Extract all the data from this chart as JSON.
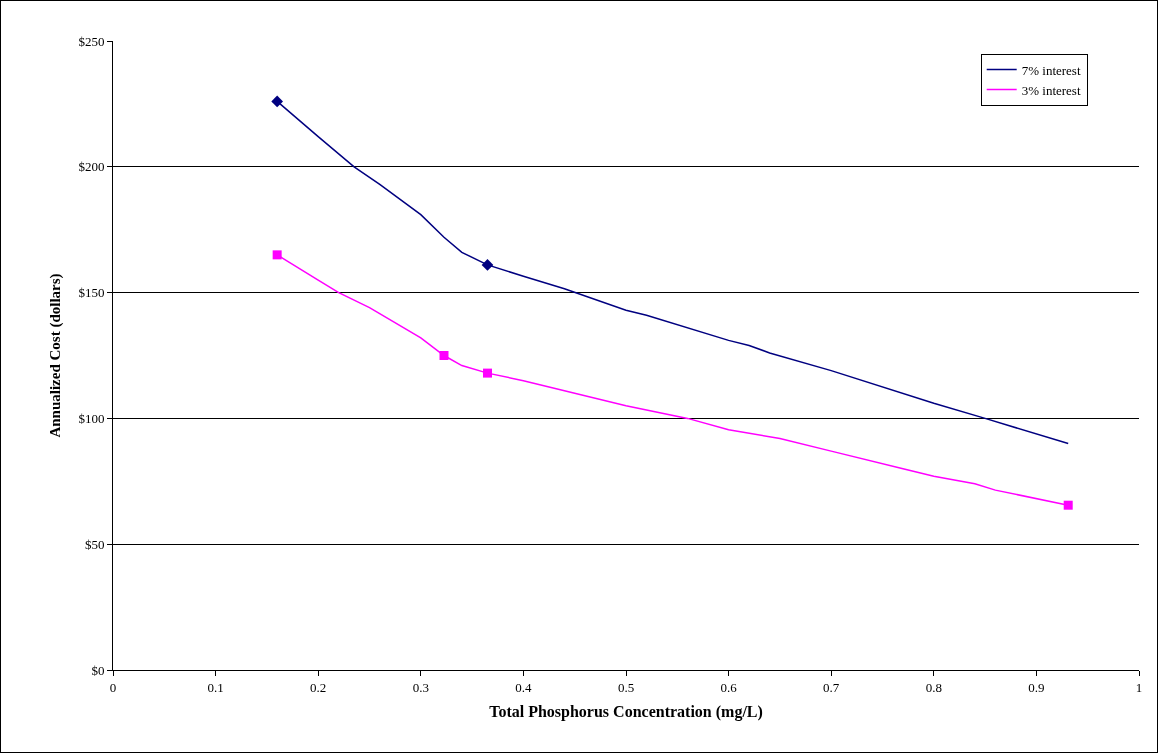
{
  "chart_data": {
    "type": "line",
    "xlabel": "Total Phosphorus Concentration (mg/L)",
    "ylabel": "Annualized Cost (dollars)",
    "series": [
      {
        "name": "7% interest",
        "color": "#000080",
        "marker": "none",
        "x": [
          0.16,
          0.2,
          0.235,
          0.26,
          0.3,
          0.3226,
          0.34,
          0.365,
          0.4,
          0.44,
          0.5,
          0.52,
          0.6,
          0.62,
          0.64,
          0.7,
          0.8,
          0.85,
          0.931
        ],
        "values": [
          226,
          212,
          200,
          193,
          181,
          172,
          166,
          161,
          156.5,
          151.5,
          143,
          141,
          131,
          129,
          126,
          119,
          106,
          100,
          90
        ]
      },
      {
        "name": "3% interest",
        "color": "#ff00ff",
        "marker": "none",
        "x": [
          0.16,
          0.2,
          0.22,
          0.25,
          0.3,
          0.3226,
          0.34,
          0.365,
          0.4,
          0.43,
          0.5,
          0.56,
          0.6,
          0.65,
          0.7,
          0.77,
          0.8,
          0.84,
          0.86,
          0.931
        ],
        "values": [
          165,
          155,
          150,
          144,
          132,
          125,
          121,
          118,
          115,
          112,
          105,
          100,
          95.5,
          92,
          87,
          80,
          77,
          74,
          71.5,
          65.5
        ]
      },
      {
        "type": "scatter",
        "color": "#000080",
        "marker": "diamond",
        "x": [
          0.16,
          0.365
        ],
        "values": [
          226,
          161
        ]
      },
      {
        "type": "scatter",
        "color": "#ff00ff",
        "marker": "square",
        "x": [
          0.16,
          0.3226,
          0.365,
          0.931
        ],
        "values": [
          165,
          125,
          118,
          65.5
        ]
      }
    ],
    "xlim": [
      0,
      1
    ],
    "xticks": [
      0,
      0.1,
      0.2,
      0.3,
      0.4,
      0.5,
      0.6,
      0.7,
      0.8,
      0.9,
      1
    ],
    "ylim": [
      0,
      250
    ],
    "yticks": [
      {
        "value": 0,
        "label": "$0"
      },
      {
        "value": 50,
        "label": "$50"
      },
      {
        "value": 100,
        "label": "$100"
      },
      {
        "value": 150,
        "label": "$150"
      },
      {
        "value": 200,
        "label": "$200"
      },
      {
        "value": 250,
        "label": "$250"
      }
    ],
    "grid": "y",
    "legend": "top right"
  }
}
